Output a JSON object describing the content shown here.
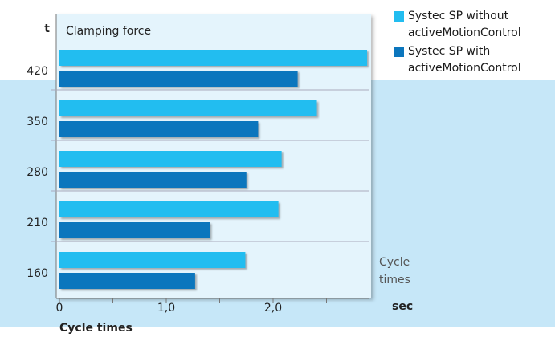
{
  "chart_data": {
    "type": "bar",
    "orientation": "horizontal",
    "title": "Cycle times",
    "y_label": "t",
    "y_caption": "Clamping force",
    "x_label": "sec",
    "annotation": "Cycle times",
    "categories": [
      "420",
      "350",
      "280",
      "210",
      "160"
    ],
    "series": [
      {
        "name": "Systec SP without activeMotionControl",
        "color": "#22bdf0",
        "values": [
          2.88,
          2.41,
          2.08,
          2.05,
          1.74
        ]
      },
      {
        "name": "Systec SP with activeMotionControl",
        "color": "#0b76bd",
        "values": [
          2.23,
          1.86,
          1.75,
          1.41,
          1.27
        ]
      }
    ],
    "xlim": [
      0,
      2.9
    ],
    "xticks": [
      0,
      {
        "value": 1,
        "label": "1,0"
      },
      {
        "value": 2,
        "label": "2,0"
      }
    ],
    "xminor_ticks": [
      0.5,
      1.5,
      2.5
    ]
  }
}
